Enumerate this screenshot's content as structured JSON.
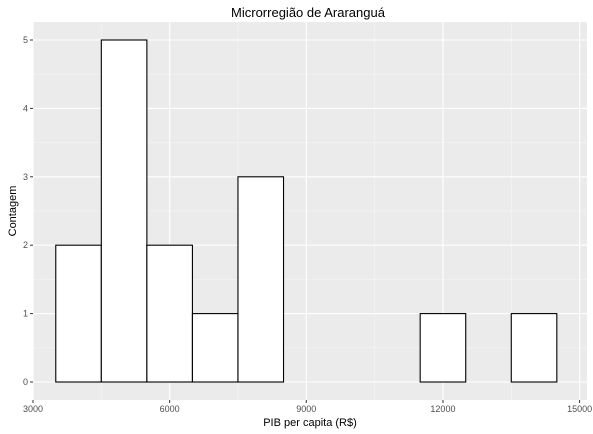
{
  "chart_data": {
    "type": "bar",
    "title": "Microrregião de  Araranguá",
    "xlabel": "PIB per capita (R$)",
    "ylabel": "Contagem",
    "xlim": [
      3000,
      15000
    ],
    "ylim": [
      0,
      5
    ],
    "bin_width": 1000,
    "x_ticks": [
      3000,
      6000,
      9000,
      12000,
      15000
    ],
    "x_tick_labels": [
      "3000",
      "6000",
      "9000",
      "12000",
      "15000"
    ],
    "y_ticks": [
      0,
      1,
      2,
      3,
      4,
      5
    ],
    "y_tick_labels": [
      "0",
      "1",
      "2",
      "3",
      "4",
      "5"
    ],
    "bins": [
      {
        "start": 3500,
        "end": 4500,
        "count": 2
      },
      {
        "start": 4500,
        "end": 5500,
        "count": 5
      },
      {
        "start": 5500,
        "end": 6500,
        "count": 2
      },
      {
        "start": 6500,
        "end": 7500,
        "count": 1
      },
      {
        "start": 7500,
        "end": 8500,
        "count": 3
      },
      {
        "start": 8500,
        "end": 9500,
        "count": 0
      },
      {
        "start": 9500,
        "end": 10500,
        "count": 0
      },
      {
        "start": 10500,
        "end": 11500,
        "count": 0
      },
      {
        "start": 11500,
        "end": 12500,
        "count": 1
      },
      {
        "start": 12500,
        "end": 13500,
        "count": 0
      },
      {
        "start": 13500,
        "end": 14500,
        "count": 1
      }
    ],
    "grid": true,
    "colors": {
      "panel_background": "#ebebeb",
      "grid_major": "#ffffff",
      "bar_fill": "#ffffff",
      "bar_stroke": "#000000",
      "tick_text": "#4d4d4d"
    }
  }
}
